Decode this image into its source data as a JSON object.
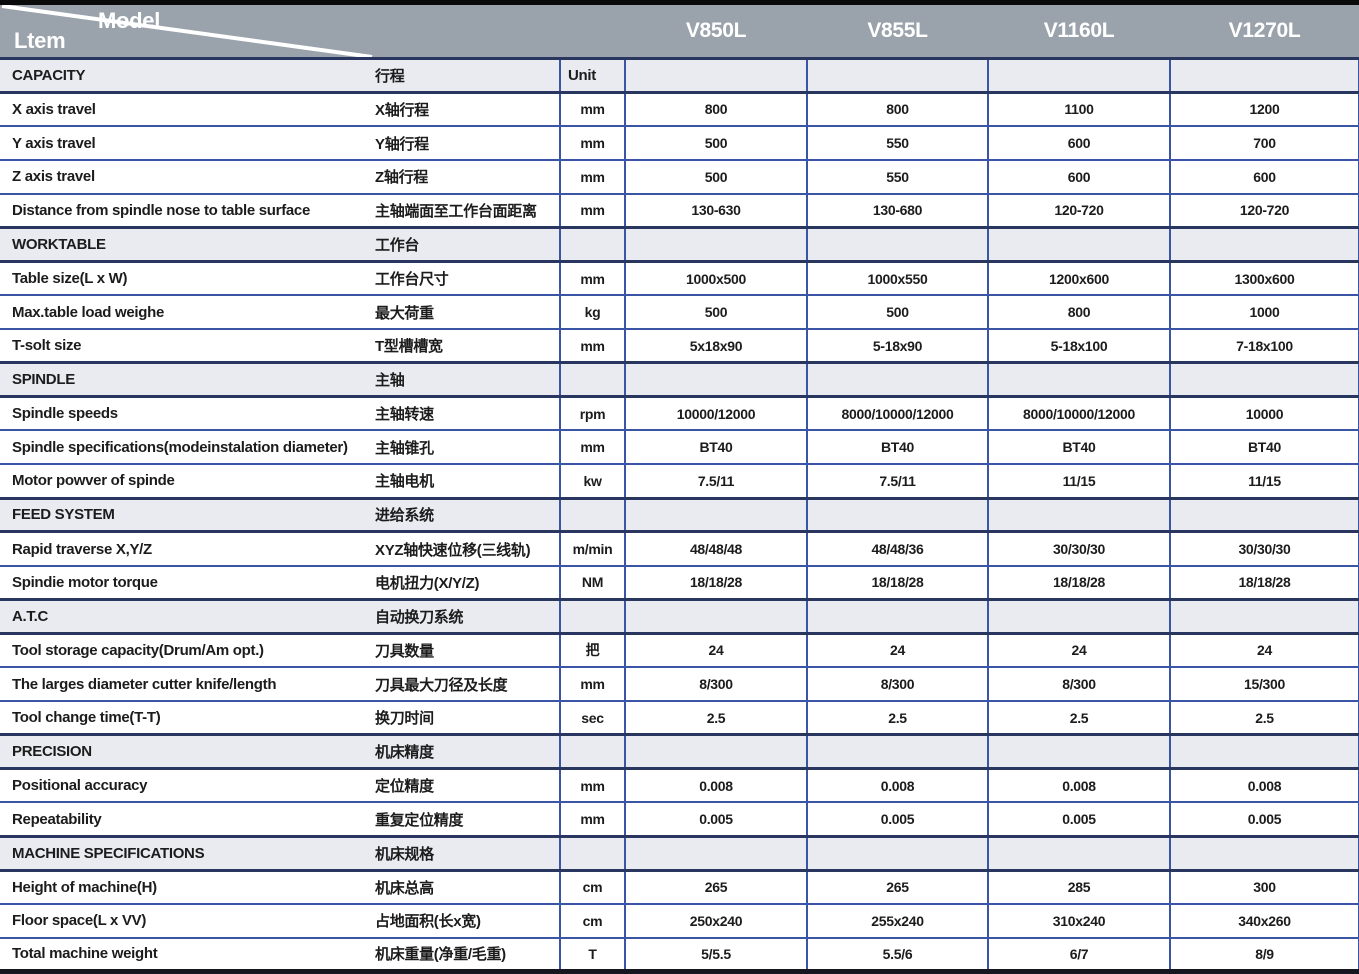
{
  "header": {
    "item_label": "Ltem",
    "model_label": "Model",
    "models": [
      "V850L",
      "V855L",
      "V1160L",
      "V1270L"
    ]
  },
  "colors": {
    "header_bg": "#9aa3ab",
    "section_bg": "#e9ebf0",
    "border_blue": "#3b55a6",
    "border_dark": "#29365f",
    "top_bar": "#0a0a0a",
    "text_dark": "#1c1c1c"
  },
  "sections": [
    {
      "en": "CAPACITY",
      "cn": "行程",
      "unit": "Unit",
      "rows": [
        {
          "en": "X axis travel",
          "cn": "X轴行程",
          "unit": "mm",
          "values": [
            "800",
            "800",
            "1100",
            "1200"
          ]
        },
        {
          "en": "Y axis travel",
          "cn": "Y轴行程",
          "unit": "mm",
          "values": [
            "500",
            "550",
            "600",
            "700"
          ]
        },
        {
          "en": "Z axis travel",
          "cn": "Z轴行程",
          "unit": "mm",
          "values": [
            "500",
            "550",
            "600",
            "600"
          ]
        },
        {
          "en": "Distance from spindle nose to table surface",
          "cn": "主轴端面至工作台面距离",
          "unit": "mm",
          "values": [
            "130-630",
            "130-680",
            "120-720",
            "120-720"
          ]
        }
      ]
    },
    {
      "en": "WORKTABLE",
      "cn": "工作台",
      "unit": "",
      "rows": [
        {
          "en": "Table size(L x W)",
          "cn": "工作台尺寸",
          "unit": "mm",
          "values": [
            "1000x500",
            "1000x550",
            "1200x600",
            "1300x600"
          ]
        },
        {
          "en": "Max.table load weighe",
          "cn": "最大荷重",
          "unit": "kg",
          "values": [
            "500",
            "500",
            "800",
            "1000"
          ]
        },
        {
          "en": "T-solt size",
          "cn": "T型槽槽宽",
          "unit": "mm",
          "values": [
            "5x18x90",
            "5-18x90",
            "5-18x100",
            "7-18x100"
          ]
        }
      ]
    },
    {
      "en": "SPINDLE",
      "cn": "主轴",
      "unit": "",
      "rows": [
        {
          "en": "Spindle speeds",
          "cn": "主轴转速",
          "unit": "rpm",
          "values": [
            "10000/12000",
            "8000/10000/12000",
            "8000/10000/12000",
            "10000"
          ]
        },
        {
          "en": "Spindle specifications(modeinstalation diameter)",
          "cn": "主轴锥孔",
          "unit": "mm",
          "values": [
            "BT40",
            "BT40",
            "BT40",
            "BT40"
          ]
        },
        {
          "en": "Motor powver of spinde",
          "cn": "主轴电机",
          "unit": "kw",
          "values": [
            "7.5/11",
            "7.5/11",
            "11/15",
            "11/15"
          ]
        }
      ]
    },
    {
      "en": "FEED SYSTEM",
      "cn": "进给系统",
      "unit": "",
      "rows": [
        {
          "en": "Rapid traverse X,Y/Z",
          "cn": "XYZ轴快速位移(三线轨)",
          "unit": "m/min",
          "values": [
            "48/48/48",
            "48/48/36",
            "30/30/30",
            "30/30/30"
          ]
        },
        {
          "en": "Spindie motor torque",
          "cn": "电机扭力(X/Y/Z)",
          "unit": "NM",
          "values": [
            "18/18/28",
            "18/18/28",
            "18/18/28",
            "18/18/28"
          ]
        }
      ]
    },
    {
      "en": "A.T.C",
      "cn": "自动换刀系统",
      "unit": "",
      "rows": [
        {
          "en": "Tool storage capacity(Drum/Am opt.)",
          "cn": "刀具数量",
          "unit": "把",
          "values": [
            "24",
            "24",
            "24",
            "24"
          ]
        },
        {
          "en": "The larges diameter cutter knife/length",
          "cn": "刀具最大刀径及长度",
          "unit": "mm",
          "values": [
            "8/300",
            "8/300",
            "8/300",
            "15/300"
          ]
        },
        {
          "en": "Tool change time(T-T)",
          "cn": "换刀时间",
          "unit": "sec",
          "values": [
            "2.5",
            "2.5",
            "2.5",
            "2.5"
          ]
        }
      ]
    },
    {
      "en": "PRECISION",
      "cn": "机床精度",
      "unit": "",
      "rows": [
        {
          "en": "Positional accuracy",
          "cn": "定位精度",
          "unit": "mm",
          "values": [
            "0.008",
            "0.008",
            "0.008",
            "0.008"
          ]
        },
        {
          "en": "Repeatability",
          "cn": "重复定位精度",
          "unit": "mm",
          "values": [
            "0.005",
            "0.005",
            "0.005",
            "0.005"
          ]
        }
      ]
    },
    {
      "en": "MACHINE SPECIFICATIONS",
      "cn": "机床规格",
      "unit": "",
      "rows": [
        {
          "en": "Height of machine(H)",
          "cn": "机床总高",
          "unit": "cm",
          "values": [
            "265",
            "265",
            "285",
            "300"
          ]
        },
        {
          "en": "Floor space(L x VV)",
          "cn": "占地面积(长x宽)",
          "unit": "cm",
          "values": [
            "250x240",
            "255x240",
            "310x240",
            "340x260"
          ]
        },
        {
          "en": "Total machine weight",
          "cn": "机床重量(净重/毛重)",
          "unit": "T",
          "values": [
            "5/5.5",
            "5.5/6",
            "6/7",
            "8/9"
          ]
        }
      ]
    }
  ]
}
